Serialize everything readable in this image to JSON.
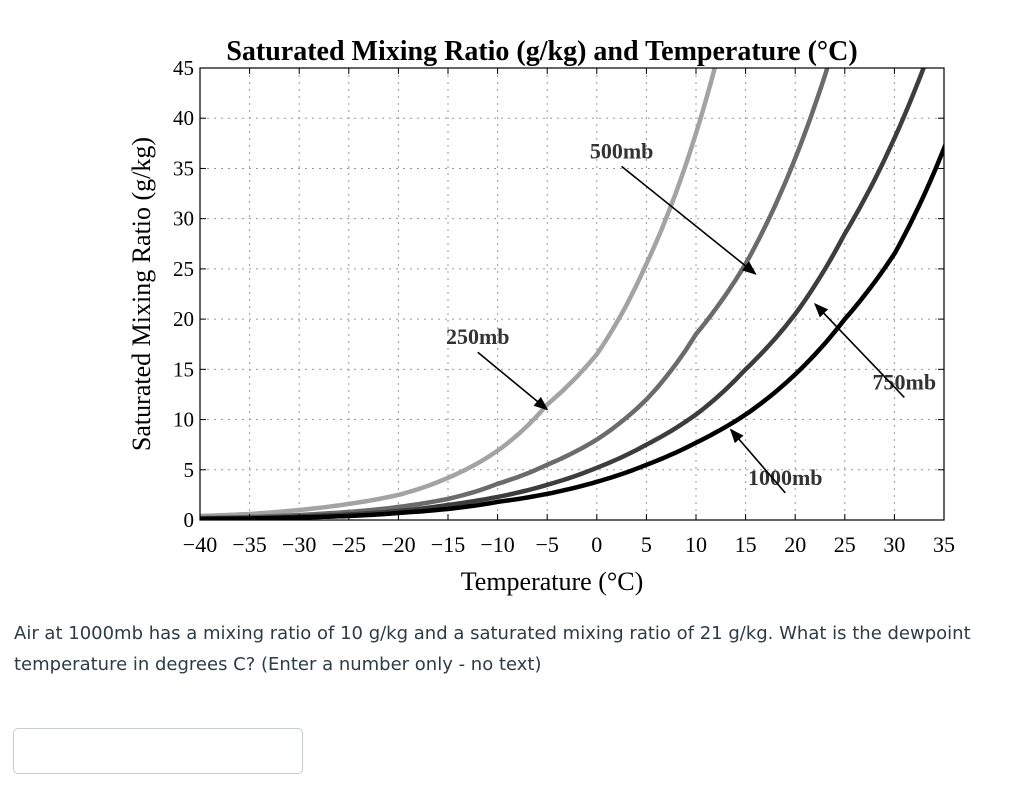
{
  "chart_data": {
    "type": "line",
    "title": "Saturated Mixing Ratio (g/kg) and Temperature (°C)",
    "xlabel": "Temperature (°C)",
    "ylabel": "Saturated Mixing Ratio (g/kg)",
    "xlim": [
      -40,
      35
    ],
    "ylim": [
      0,
      45
    ],
    "xticks": [
      "−40",
      "−35",
      "−30",
      "−25",
      "−20",
      "−15",
      "−10",
      "−5",
      "0",
      "5",
      "10",
      "15",
      "20",
      "25",
      "30",
      "35"
    ],
    "yticks": [
      "0",
      "5",
      "10",
      "15",
      "20",
      "25",
      "30",
      "35",
      "40",
      "45"
    ],
    "grid": true,
    "x": [
      -40,
      -35,
      -30,
      -25,
      -20,
      -15,
      -10,
      -5,
      0,
      5,
      10,
      15,
      20,
      25,
      30,
      35
    ],
    "series": [
      {
        "name": "250mb",
        "color": "#a3a3a3",
        "values": [
          0.4,
          0.6,
          1.0,
          1.6,
          2.5,
          4.2,
          6.9,
          11.5,
          16.5,
          25.5,
          38.5,
          null,
          null,
          null,
          null,
          null
        ]
      },
      {
        "name": "500mb",
        "color": "#6b6b6b",
        "values": [
          0.2,
          0.3,
          0.5,
          0.8,
          1.3,
          2.1,
          3.6,
          5.5,
          8.0,
          12.0,
          18.5,
          25.5,
          36.0,
          null,
          null,
          null
        ]
      },
      {
        "name": "750mb",
        "color": "#3d3d3d",
        "values": [
          0.15,
          0.2,
          0.35,
          0.55,
          0.9,
          1.5,
          2.3,
          3.5,
          5.2,
          7.5,
          10.5,
          15.0,
          20.5,
          28.5,
          38.0,
          null
        ]
      },
      {
        "name": "1000mb",
        "color": "#000000",
        "values": [
          0.1,
          0.15,
          0.25,
          0.4,
          0.7,
          1.1,
          1.8,
          2.6,
          3.8,
          5.5,
          7.7,
          10.5,
          14.5,
          20.0,
          26.5,
          37.0
        ]
      }
    ],
    "annotations": [
      {
        "text": "250mb",
        "label_at": [
          -12,
          17.5
        ],
        "arrow_to": [
          -5,
          11
        ]
      },
      {
        "text": "500mb",
        "label_at": [
          2.5,
          36
        ],
        "arrow_to": [
          16,
          24.5
        ]
      },
      {
        "text": "750mb",
        "label_at": [
          31,
          13
        ],
        "arrow_to": [
          22,
          21.5
        ]
      },
      {
        "text": "1000mb",
        "label_at": [
          19,
          3.5
        ],
        "arrow_to": [
          13.5,
          9
        ]
      }
    ]
  },
  "question": {
    "text": "Air at 1000mb has a mixing ratio of 10 g/kg and a saturated mixing ratio of 21 g/kg. What is the dewpoint temperature in degrees C? (Enter a number only - no text)"
  },
  "answer": {
    "value": ""
  }
}
